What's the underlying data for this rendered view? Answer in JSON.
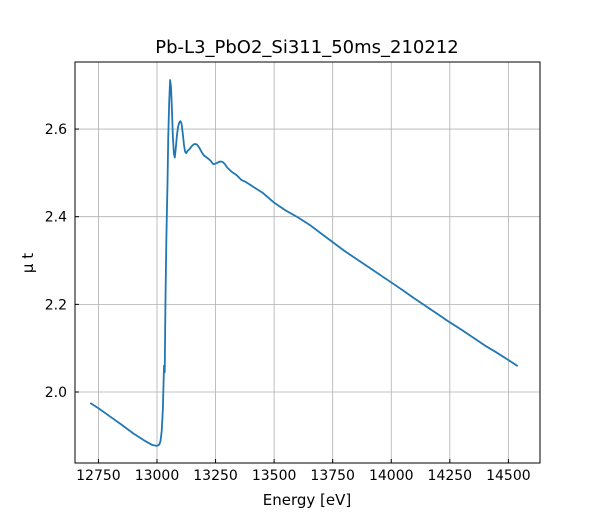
{
  "chart_data": {
    "type": "line",
    "title": "Pb-L3_PbO2_Si311_50ms_210212",
    "xlabel": "Energy [eV]",
    "ylabel": "μ t",
    "xlim": [
      12650,
      14635
    ],
    "ylim": [
      1.838,
      2.753
    ],
    "xticks": [
      12750,
      13000,
      13250,
      13500,
      13750,
      14000,
      14250,
      14500
    ],
    "yticks": [
      2.0,
      2.2,
      2.4,
      2.6
    ],
    "ytick_labels": [
      "2.0",
      "2.2",
      "2.4",
      "2.6"
    ],
    "grid": true,
    "line_color": "#1f77b4",
    "series": [
      {
        "x": [
          12715,
          12750,
          12800,
          12850,
          12900,
          12950,
          12980,
          13000,
          13010,
          13015,
          13020,
          13025,
          13030,
          13033,
          13036,
          13040,
          13045,
          13048,
          13052,
          13056,
          13060,
          13064,
          13068,
          13072,
          13076,
          13080,
          13085,
          13090,
          13095,
          13100,
          13105,
          13110,
          13115,
          13120,
          13125,
          13130,
          13135,
          13140,
          13150,
          13160,
          13170,
          13180,
          13190,
          13200,
          13210,
          13220,
          13230,
          13240,
          13250,
          13260,
          13270,
          13280,
          13290,
          13300,
          13320,
          13340,
          13360,
          13380,
          13400,
          13450,
          13500,
          13550,
          13600,
          13650,
          13700,
          13750,
          13800,
          13850,
          13900,
          13950,
          14000,
          14050,
          14100,
          14150,
          14200,
          14250,
          14300,
          14350,
          14400,
          14450,
          14500,
          14540
        ],
        "y": [
          1.975,
          1.963,
          1.944,
          1.925,
          1.905,
          1.888,
          1.879,
          1.877,
          1.88,
          1.888,
          1.91,
          1.96,
          2.06,
          2.045,
          2.2,
          2.35,
          2.48,
          2.58,
          2.66,
          2.712,
          2.695,
          2.64,
          2.58,
          2.545,
          2.535,
          2.555,
          2.585,
          2.605,
          2.615,
          2.618,
          2.612,
          2.59,
          2.565,
          2.548,
          2.545,
          2.55,
          2.552,
          2.555,
          2.562,
          2.566,
          2.565,
          2.558,
          2.548,
          2.54,
          2.536,
          2.532,
          2.527,
          2.52,
          2.521,
          2.524,
          2.526,
          2.525,
          2.52,
          2.512,
          2.502,
          2.495,
          2.484,
          2.479,
          2.472,
          2.455,
          2.432,
          2.414,
          2.399,
          2.382,
          2.362,
          2.342,
          2.322,
          2.304,
          2.286,
          2.268,
          2.25,
          2.232,
          2.213,
          2.195,
          2.177,
          2.159,
          2.142,
          2.124,
          2.106,
          2.09,
          2.073,
          2.059
        ]
      }
    ]
  }
}
